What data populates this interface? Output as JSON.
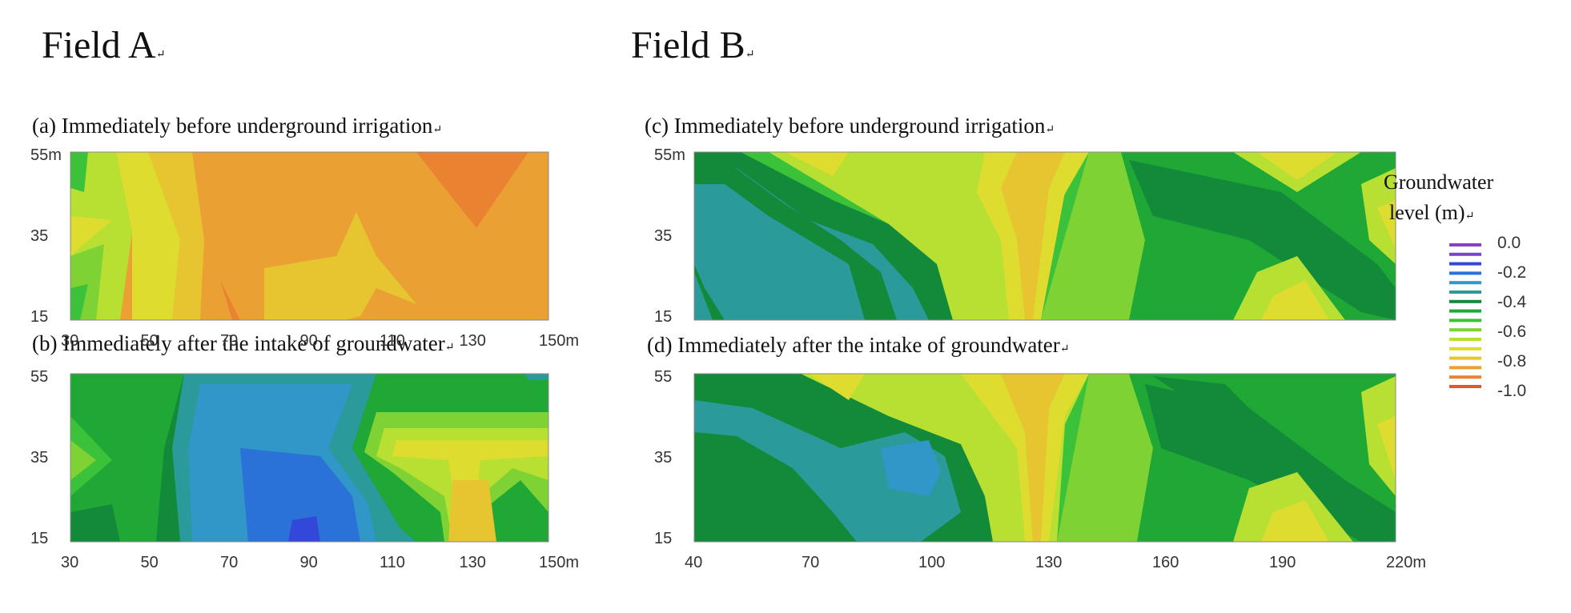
{
  "figure": {
    "field_a_title": "Field A",
    "field_b_title": "Field B",
    "para_mark": "↵"
  },
  "colors": {
    "levels": [
      "#8a3fc0",
      "#7a45d0",
      "#3348d8",
      "#2a72d8",
      "#3196c8",
      "#2b9a9a",
      "#128a3a",
      "#1fa835",
      "#3cc23a",
      "#7fd233",
      "#b8e033",
      "#dedc2e",
      "#e6c530",
      "#eba034",
      "#e98231",
      "#e35a2a"
    ]
  },
  "chart_data": [
    {
      "id": "a",
      "type": "heatmap",
      "title": "(a) Immediately before underground irrigation",
      "x_ticks": [
        "30",
        "50",
        "70",
        "90",
        "110",
        "130",
        "150m"
      ],
      "y_ticks": [
        "55m",
        "35",
        "15"
      ],
      "x_range": [
        30,
        150
      ],
      "y_range": [
        15,
        55
      ],
      "description_zones": [
        {
          "x": [
            30,
            60
          ],
          "level": -0.65
        },
        {
          "x": [
            60,
            150
          ],
          "level": -0.85
        }
      ]
    },
    {
      "id": "b",
      "type": "heatmap",
      "title": "(b) Immediately after the intake of groundwater",
      "x_ticks": [
        "30",
        "50",
        "70",
        "90",
        "110",
        "130",
        "150m"
      ],
      "y_ticks": [
        "55",
        "35",
        "15"
      ],
      "x_range": [
        30,
        150
      ],
      "y_range": [
        15,
        55
      ]
    },
    {
      "id": "c",
      "type": "heatmap",
      "title": "(c) Immediately before underground irrigation",
      "x_ticks": [],
      "y_ticks": [
        "55m",
        "35",
        "15"
      ],
      "x_range": [
        40,
        220
      ],
      "y_range": [
        15,
        55
      ]
    },
    {
      "id": "d",
      "type": "heatmap",
      "title": "(d) Immediately after the intake of groundwater",
      "x_ticks": [
        "40",
        "70",
        "100",
        "130",
        "160",
        "190",
        "220m"
      ],
      "y_ticks": [
        "55",
        "35",
        "15"
      ],
      "x_range": [
        40,
        220
      ],
      "y_range": [
        15,
        55
      ]
    }
  ],
  "legend": {
    "title_line1": "Groundwater",
    "title_line2": "level (m)",
    "labels": [
      "0.0",
      "-0.2",
      "-0.4",
      "-0.6",
      "-0.8",
      "-1.0"
    ]
  }
}
